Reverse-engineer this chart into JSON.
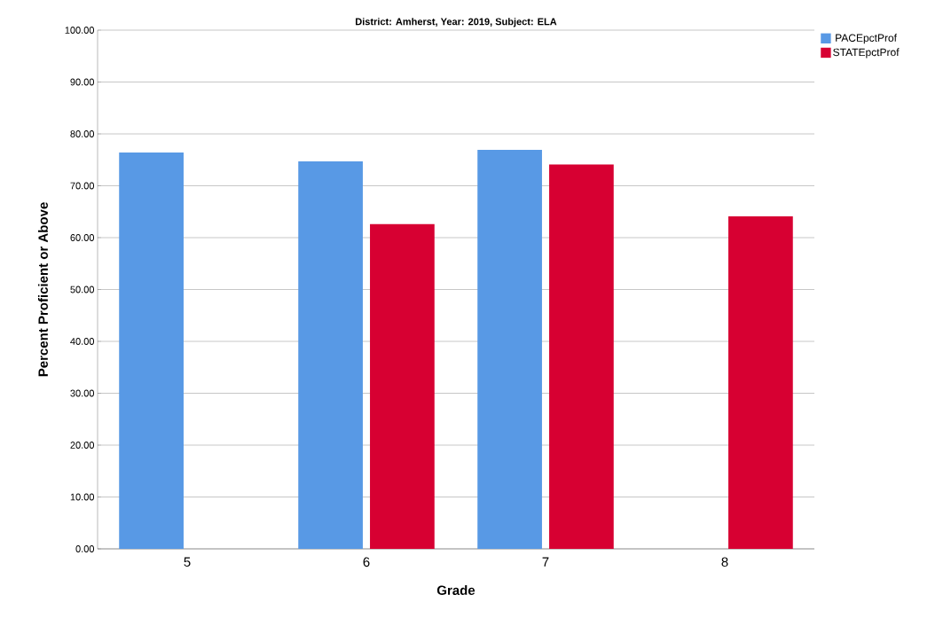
{
  "chart_data": {
    "type": "bar",
    "title": "District: Amherst, Year: 2019, Subject: ELA",
    "xlabel": "Grade",
    "ylabel": "Percent Proficient or Above",
    "categories": [
      "5",
      "6",
      "7",
      "8"
    ],
    "series": [
      {
        "name": "PACEpctProf",
        "color": "#5899e5",
        "values": [
          76.4,
          74.7,
          76.9,
          null
        ]
      },
      {
        "name": "STATEpctProf",
        "color": "#d70032",
        "values": [
          null,
          62.6,
          74.1,
          64.1
        ]
      }
    ],
    "ylim": [
      0,
      100
    ],
    "yticks": [
      {
        "value": 0,
        "label": "0.00"
      },
      {
        "value": 10,
        "label": "10.00"
      },
      {
        "value": 20,
        "label": "20.00"
      },
      {
        "value": 30,
        "label": "30.00"
      },
      {
        "value": 40,
        "label": "40.00"
      },
      {
        "value": 50,
        "label": "50.00"
      },
      {
        "value": 60,
        "label": "60.00"
      },
      {
        "value": 70,
        "label": "70.00"
      },
      {
        "value": 80,
        "label": "80.00"
      },
      {
        "value": 90,
        "label": "90.00"
      },
      {
        "value": 100,
        "label": "100.00"
      }
    ],
    "grid": "y",
    "legend": "top right"
  }
}
